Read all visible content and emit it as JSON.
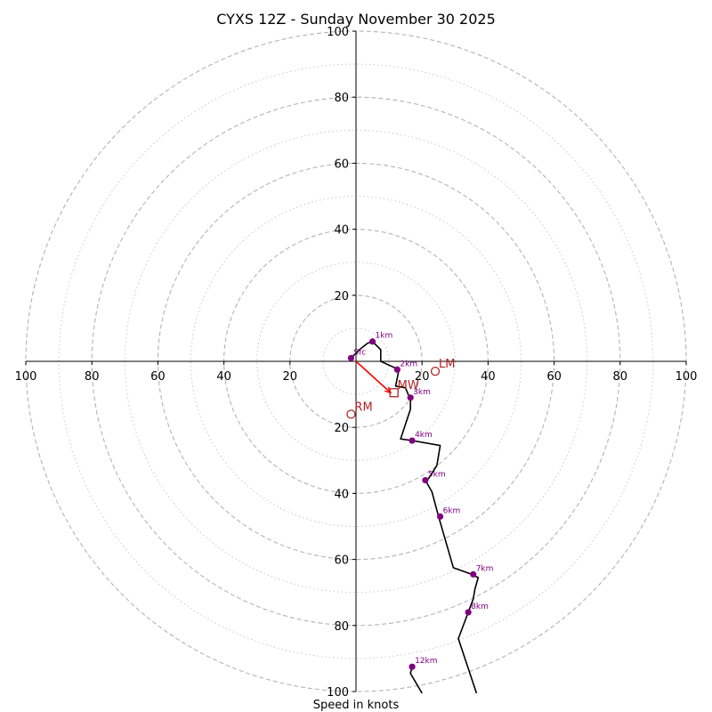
{
  "chart_data": {
    "type": "hodograph",
    "title": "CYXS 12Z - Sunday November 30 2025",
    "xlabel": "Speed in knots",
    "xlim": [
      -100,
      100
    ],
    "ylim": [
      -100,
      100
    ],
    "ring_major": [
      20,
      40,
      60,
      80,
      100
    ],
    "ring_minor": [
      10,
      30,
      50,
      70,
      90
    ],
    "x_ticks": [
      -100,
      -80,
      -60,
      -40,
      -20,
      20,
      40,
      60,
      80,
      100
    ],
    "x_tick_labels": [
      "100",
      "80",
      "60",
      "40",
      "20",
      "20",
      "40",
      "60",
      "80",
      "100"
    ],
    "y_ticks": [
      100,
      80,
      60,
      40,
      20,
      -20,
      -40,
      -60,
      -80,
      -100
    ],
    "y_tick_labels": [
      "100",
      "80",
      "60",
      "40",
      "20",
      "20",
      "40",
      "60",
      "80",
      "100"
    ],
    "trace": {
      "name": "wind profile",
      "color": "#000000",
      "points": [
        [
          -1.5,
          1.0
        ],
        [
          1.0,
          3.5
        ],
        [
          3.5,
          5.5
        ],
        [
          5.0,
          6.0
        ],
        [
          7.5,
          3.5
        ],
        [
          7.5,
          0.0
        ],
        [
          13.0,
          -2.5
        ],
        [
          12.5,
          -5.0
        ],
        [
          12.0,
          -7.5
        ],
        [
          15.0,
          -8.0
        ],
        [
          16.0,
          -10.5
        ],
        [
          16.5,
          -11.0
        ],
        [
          16.5,
          -14.5
        ],
        [
          13.5,
          -23.5
        ],
        [
          17.0,
          -24.0
        ],
        [
          25.5,
          -25.5
        ],
        [
          24.5,
          -31.5
        ],
        [
          22.0,
          -35.5
        ],
        [
          21.0,
          -36.0
        ],
        [
          23.0,
          -39.5
        ],
        [
          25.0,
          -47.0
        ],
        [
          29.5,
          -62.5
        ],
        [
          35.0,
          -64.5
        ],
        [
          37.0,
          -65.5
        ],
        [
          36.0,
          -69.0
        ],
        [
          35.5,
          -72.0
        ],
        [
          34.0,
          -76.0
        ],
        [
          31.0,
          -84.0
        ],
        [
          36.5,
          -100.5
        ]
      ],
      "top_segment": [
        [
          17.0,
          -92.5
        ],
        [
          16.5,
          -94.5
        ],
        [
          20.0,
          -100.5
        ]
      ]
    },
    "heights": [
      {
        "label": "Sfc",
        "u": -1.5,
        "v": 1.0
      },
      {
        "label": "1km",
        "u": 5.0,
        "v": 6.0
      },
      {
        "label": "2km",
        "u": 12.5,
        "v": -2.5
      },
      {
        "label": "3km",
        "u": 16.5,
        "v": -11.0
      },
      {
        "label": "4km",
        "u": 17.0,
        "v": -24.0
      },
      {
        "label": "5km",
        "u": 21.0,
        "v": -36.0
      },
      {
        "label": "6km",
        "u": 25.5,
        "v": -47.0
      },
      {
        "label": "7km",
        "u": 35.5,
        "v": -64.5
      },
      {
        "label": "8km",
        "u": 34.0,
        "v": -76.0
      },
      {
        "label": "12km",
        "u": 17.0,
        "v": -92.5
      }
    ],
    "motions": {
      "LM": {
        "label": "LM",
        "u": 24.0,
        "v": -3.0,
        "marker": "circle"
      },
      "RM": {
        "label": "RM",
        "u": -1.5,
        "v": -16.0,
        "marker": "circle"
      },
      "MW": {
        "label": "MW",
        "u": 11.5,
        "v": -9.5,
        "marker": "square"
      }
    },
    "shear_vector": {
      "from": [
        0,
        0
      ],
      "to": [
        10.5,
        -9.5
      ],
      "color": "#ff0000"
    }
  }
}
